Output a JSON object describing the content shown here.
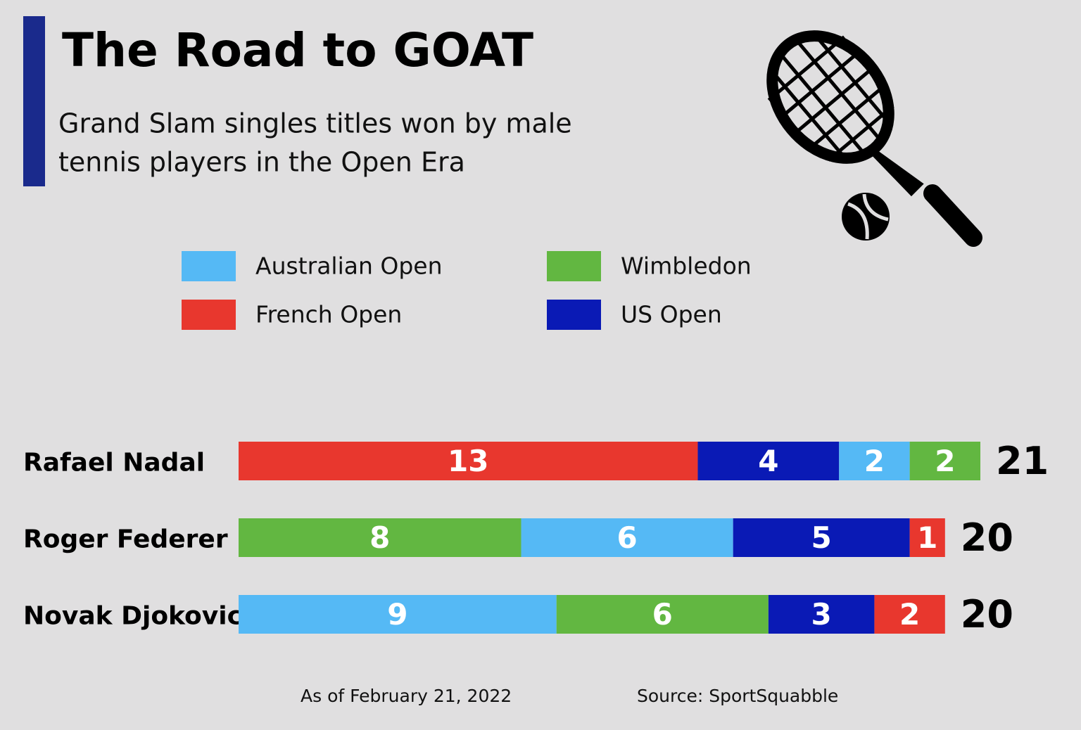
{
  "chart_data": {
    "type": "stacked-bar",
    "title": "The Road to GOAT",
    "subtitle": [
      "Grand Slam singles titles won by male",
      "tennis players in the Open Era"
    ],
    "categories": [
      "Rafael Nadal",
      "Roger Federer",
      "Novak Djokovic"
    ],
    "series": [
      {
        "name": "Australian Open",
        "color": "#55b9f5",
        "values": [
          2,
          6,
          9
        ]
      },
      {
        "name": "French Open",
        "color": "#e8372e",
        "values": [
          13,
          1,
          2
        ]
      },
      {
        "name": "Wimbledon",
        "color": "#62b741",
        "values": [
          2,
          8,
          6
        ]
      },
      {
        "name": "US Open",
        "color": "#0a1ab5",
        "values": [
          4,
          5,
          3
        ]
      }
    ],
    "totals": [
      21,
      20,
      20
    ],
    "xlim": [
      0,
      21
    ],
    "notes": [
      "As of February 21, 2022",
      "Source: SportSquabble"
    ]
  }
}
